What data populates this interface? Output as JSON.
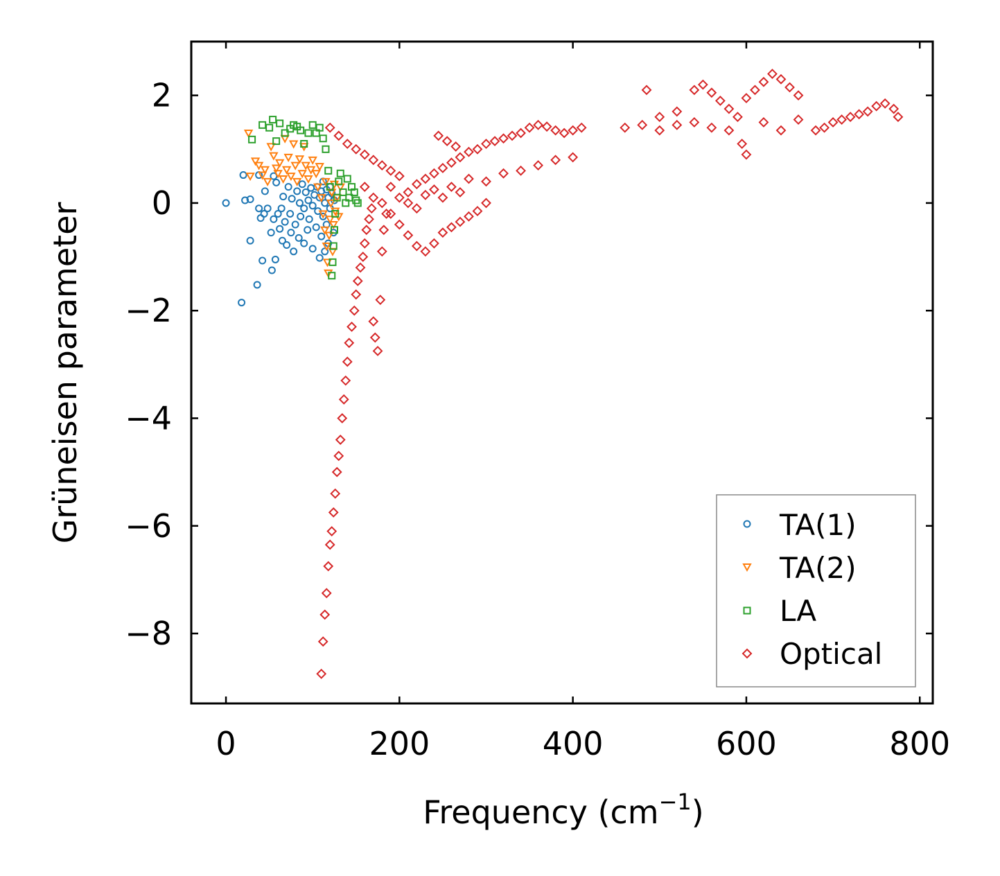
{
  "chart_data": {
    "type": "scatter",
    "title": "",
    "xlabel": "Frequency (cm",
    "xlabel_sup": "−1",
    "xlabel_end": ")",
    "ylabel": "Grüneisen parameter",
    "xlim": [
      -40,
      815
    ],
    "ylim": [
      -9.3,
      3.0
    ],
    "xticks": [
      0,
      200,
      400,
      600,
      800
    ],
    "xtick_labels": [
      "0",
      "200",
      "400",
      "600",
      "800"
    ],
    "yticks": [
      2,
      0,
      -2,
      -4,
      -6,
      -8
    ],
    "ytick_labels": [
      "2",
      "0",
      "−2",
      "−4",
      "−6",
      "−8"
    ],
    "grid": false,
    "legend_position": "lower-right",
    "series": [
      {
        "name": "TA(1)",
        "marker": "circle",
        "color": "#1f77b4",
        "points": [
          [
            0,
            0
          ],
          [
            18,
            -1.85
          ],
          [
            20,
            0.52
          ],
          [
            22,
            0.05
          ],
          [
            28,
            0.07
          ],
          [
            28,
            -0.7
          ],
          [
            36,
            -1.52
          ],
          [
            38,
            -0.1
          ],
          [
            38,
            0.52
          ],
          [
            40,
            -0.28
          ],
          [
            42,
            -1.07
          ],
          [
            44,
            -0.2
          ],
          [
            45,
            0.22
          ],
          [
            48,
            -0.1
          ],
          [
            52,
            -0.55
          ],
          [
            53,
            -1.25
          ],
          [
            55,
            -0.3
          ],
          [
            55,
            0.5
          ],
          [
            57,
            -1.05
          ],
          [
            58,
            0.38
          ],
          [
            60,
            -0.2
          ],
          [
            62,
            -0.48
          ],
          [
            64,
            -0.1
          ],
          [
            65,
            -0.7
          ],
          [
            66,
            0.12
          ],
          [
            68,
            -0.35
          ],
          [
            70,
            -0.78
          ],
          [
            72,
            0.3
          ],
          [
            74,
            -0.2
          ],
          [
            75,
            -0.55
          ],
          [
            76,
            0.08
          ],
          [
            78,
            -0.9
          ],
          [
            80,
            -0.4
          ],
          [
            82,
            0.22
          ],
          [
            84,
            -0.65
          ],
          [
            85,
            0.0
          ],
          [
            86,
            -0.25
          ],
          [
            88,
            0.35
          ],
          [
            90,
            -0.75
          ],
          [
            90,
            -0.1
          ],
          [
            92,
            0.2
          ],
          [
            94,
            -0.5
          ],
          [
            95,
            0.05
          ],
          [
            96,
            -0.3
          ],
          [
            98,
            0.28
          ],
          [
            100,
            -0.85
          ],
          [
            100,
            -0.05
          ],
          [
            102,
            0.15
          ],
          [
            104,
            -0.45
          ],
          [
            105,
            0.3
          ],
          [
            106,
            -0.15
          ],
          [
            108,
            -1.02
          ],
          [
            108,
            0.1
          ],
          [
            110,
            -0.62
          ],
          [
            110,
            0.22
          ],
          [
            112,
            -0.25
          ],
          [
            112,
            0.4
          ],
          [
            114,
            0.0
          ],
          [
            114,
            -0.9
          ],
          [
            116,
            0.25
          ],
          [
            116,
            -0.4
          ],
          [
            118,
            0.1
          ],
          [
            118,
            -0.75
          ],
          [
            120,
            0.3
          ],
          [
            120,
            -0.1
          ],
          [
            122,
            0.18
          ],
          [
            124,
            -0.55
          ],
          [
            125,
            0.05
          ]
        ]
      },
      {
        "name": "TA(2)",
        "marker": "triangle-down",
        "color": "#ff7f0e",
        "points": [
          [
            26,
            1.3
          ],
          [
            28,
            0.5
          ],
          [
            34,
            0.78
          ],
          [
            38,
            0.7
          ],
          [
            42,
            0.52
          ],
          [
            45,
            0.62
          ],
          [
            48,
            0.4
          ],
          [
            52,
            1.05
          ],
          [
            55,
            0.88
          ],
          [
            58,
            0.65
          ],
          [
            60,
            0.55
          ],
          [
            62,
            0.75
          ],
          [
            66,
            0.45
          ],
          [
            68,
            1.2
          ],
          [
            70,
            0.62
          ],
          [
            72,
            0.85
          ],
          [
            75,
            0.5
          ],
          [
            78,
            1.1
          ],
          [
            80,
            0.7
          ],
          [
            82,
            0.4
          ],
          [
            85,
            0.82
          ],
          [
            88,
            0.55
          ],
          [
            90,
            1.05
          ],
          [
            92,
            0.7
          ],
          [
            95,
            0.45
          ],
          [
            98,
            0.62
          ],
          [
            100,
            0.8
          ],
          [
            104,
            0.55
          ],
          [
            106,
            0.3
          ],
          [
            108,
            0.68
          ],
          [
            110,
            0.1
          ],
          [
            112,
            -0.2
          ],
          [
            114,
            -0.5
          ],
          [
            115,
            0.4
          ],
          [
            116,
            -0.8
          ],
          [
            117,
            -1.1
          ],
          [
            118,
            -1.3
          ],
          [
            119,
            -0.6
          ],
          [
            120,
            -0.3
          ],
          [
            121,
            0.0
          ],
          [
            122,
            0.2
          ],
          [
            123,
            -0.9
          ],
          [
            124,
            -0.4
          ],
          [
            125,
            0.35
          ],
          [
            126,
            -0.15
          ],
          [
            128,
            0.1
          ],
          [
            130,
            -0.25
          ],
          [
            132,
            0.3
          ]
        ]
      },
      {
        "name": "LA",
        "marker": "square",
        "color": "#2ca02c",
        "points": [
          [
            30,
            1.18
          ],
          [
            42,
            1.45
          ],
          [
            50,
            1.4
          ],
          [
            54,
            1.55
          ],
          [
            58,
            1.15
          ],
          [
            62,
            1.48
          ],
          [
            68,
            1.3
          ],
          [
            74,
            1.38
          ],
          [
            78,
            1.45
          ],
          [
            82,
            1.42
          ],
          [
            86,
            1.35
          ],
          [
            90,
            1.1
          ],
          [
            95,
            1.3
          ],
          [
            100,
            1.45
          ],
          [
            104,
            1.3
          ],
          [
            108,
            1.4
          ],
          [
            112,
            1.2
          ],
          [
            115,
            1.0
          ],
          [
            118,
            0.6
          ],
          [
            120,
            0.3
          ],
          [
            122,
            -1.35
          ],
          [
            123,
            -1.1
          ],
          [
            124,
            -0.8
          ],
          [
            125,
            -0.5
          ],
          [
            126,
            -0.2
          ],
          [
            128,
            0.1
          ],
          [
            130,
            0.4
          ],
          [
            132,
            0.55
          ],
          [
            135,
            0.2
          ],
          [
            138,
            0.0
          ],
          [
            140,
            0.45
          ],
          [
            142,
            0.1
          ],
          [
            145,
            0.3
          ],
          [
            148,
            0.2
          ],
          [
            150,
            0.05
          ],
          [
            152,
            0.0
          ]
        ]
      },
      {
        "name": "Optical",
        "marker": "diamond",
        "color": "#d62728",
        "points": [
          [
            110,
            -8.75
          ],
          [
            112,
            -8.15
          ],
          [
            114,
            -7.65
          ],
          [
            116,
            -7.25
          ],
          [
            118,
            -6.75
          ],
          [
            120,
            -6.35
          ],
          [
            122,
            -6.1
          ],
          [
            124,
            -5.75
          ],
          [
            126,
            -5.4
          ],
          [
            128,
            -5.0
          ],
          [
            130,
            -4.7
          ],
          [
            132,
            -4.4
          ],
          [
            134,
            -4.0
          ],
          [
            136,
            -3.65
          ],
          [
            138,
            -3.3
          ],
          [
            140,
            -2.95
          ],
          [
            142,
            -2.6
          ],
          [
            145,
            -2.3
          ],
          [
            148,
            -2.0
          ],
          [
            150,
            -1.7
          ],
          [
            152,
            -1.45
          ],
          [
            155,
            -1.2
          ],
          [
            158,
            -1.0
          ],
          [
            160,
            -0.75
          ],
          [
            162,
            -0.5
          ],
          [
            165,
            -0.3
          ],
          [
            168,
            -0.1
          ],
          [
            170,
            -2.2
          ],
          [
            172,
            -2.5
          ],
          [
            175,
            -2.75
          ],
          [
            178,
            -1.8
          ],
          [
            180,
            -0.9
          ],
          [
            182,
            -0.5
          ],
          [
            185,
            -0.2
          ],
          [
            120,
            1.4
          ],
          [
            130,
            1.25
          ],
          [
            140,
            1.1
          ],
          [
            150,
            1.0
          ],
          [
            160,
            0.9
          ],
          [
            170,
            0.8
          ],
          [
            180,
            0.7
          ],
          [
            190,
            0.6
          ],
          [
            200,
            0.5
          ],
          [
            160,
            0.3
          ],
          [
            170,
            0.1
          ],
          [
            180,
            0.0
          ],
          [
            190,
            -0.2
          ],
          [
            200,
            -0.4
          ],
          [
            210,
            -0.6
          ],
          [
            220,
            -0.8
          ],
          [
            230,
            -0.9
          ],
          [
            240,
            -0.75
          ],
          [
            250,
            -0.55
          ],
          [
            260,
            -0.45
          ],
          [
            270,
            -0.35
          ],
          [
            280,
            -0.25
          ],
          [
            290,
            -0.15
          ],
          [
            300,
            0.0
          ],
          [
            210,
            0.2
          ],
          [
            220,
            0.35
          ],
          [
            230,
            0.45
          ],
          [
            240,
            0.55
          ],
          [
            250,
            0.65
          ],
          [
            260,
            0.75
          ],
          [
            270,
            0.85
          ],
          [
            280,
            0.95
          ],
          [
            290,
            1.0
          ],
          [
            300,
            1.1
          ],
          [
            310,
            1.15
          ],
          [
            320,
            1.2
          ],
          [
            330,
            1.25
          ],
          [
            340,
            1.3
          ],
          [
            350,
            1.4
          ],
          [
            360,
            1.45
          ],
          [
            370,
            1.42
          ],
          [
            380,
            1.35
          ],
          [
            390,
            1.3
          ],
          [
            400,
            1.35
          ],
          [
            410,
            1.4
          ],
          [
            300,
            0.4
          ],
          [
            320,
            0.55
          ],
          [
            340,
            0.6
          ],
          [
            360,
            0.7
          ],
          [
            380,
            0.8
          ],
          [
            400,
            0.85
          ],
          [
            190,
            0.3
          ],
          [
            200,
            0.1
          ],
          [
            210,
            0.0
          ],
          [
            220,
            -0.1
          ],
          [
            230,
            0.15
          ],
          [
            240,
            0.25
          ],
          [
            250,
            0.1
          ],
          [
            260,
            0.3
          ],
          [
            270,
            0.2
          ],
          [
            280,
            0.45
          ],
          [
            245,
            1.25
          ],
          [
            255,
            1.15
          ],
          [
            265,
            1.05
          ],
          [
            460,
            1.4
          ],
          [
            480,
            1.45
          ],
          [
            500,
            1.6
          ],
          [
            520,
            1.7
          ],
          [
            540,
            2.1
          ],
          [
            550,
            2.2
          ],
          [
            560,
            2.05
          ],
          [
            570,
            1.9
          ],
          [
            580,
            1.75
          ],
          [
            590,
            1.6
          ],
          [
            600,
            1.95
          ],
          [
            610,
            2.1
          ],
          [
            620,
            2.25
          ],
          [
            630,
            2.4
          ],
          [
            640,
            2.3
          ],
          [
            650,
            2.15
          ],
          [
            660,
            2.0
          ],
          [
            600,
            0.9
          ],
          [
            595,
            1.1
          ],
          [
            485,
            2.1
          ],
          [
            500,
            1.35
          ],
          [
            520,
            1.45
          ],
          [
            540,
            1.5
          ],
          [
            560,
            1.4
          ],
          [
            580,
            1.35
          ],
          [
            620,
            1.5
          ],
          [
            640,
            1.35
          ],
          [
            660,
            1.55
          ],
          [
            680,
            1.35
          ],
          [
            690,
            1.4
          ],
          [
            700,
            1.5
          ],
          [
            710,
            1.55
          ],
          [
            720,
            1.6
          ],
          [
            730,
            1.65
          ],
          [
            740,
            1.7
          ],
          [
            750,
            1.8
          ],
          [
            760,
            1.85
          ],
          [
            770,
            1.75
          ],
          [
            775,
            1.6
          ]
        ]
      }
    ]
  }
}
